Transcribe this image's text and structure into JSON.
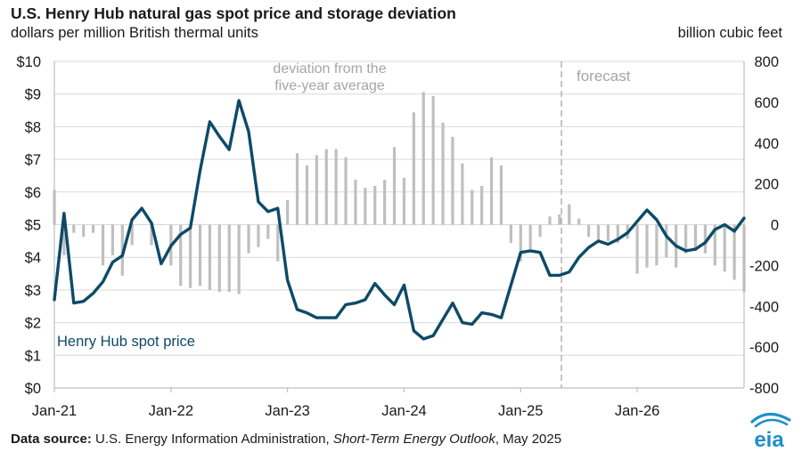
{
  "title": "U.S. Henry Hub natural gas spot price and storage deviation",
  "subtitle_left": "dollars per million British thermal units",
  "subtitle_right": "billion cubic feet",
  "source": {
    "label": "Data source:",
    "text": " U.S. Energy Information Administration, ",
    "publication": "Short-Term Energy Outlook",
    "date": ", May 2025"
  },
  "logo_text": "eia",
  "colors": {
    "price_line": "#0d4a67",
    "bars": "#bfbfbf",
    "axis": "#bfbfbf",
    "grid": "#d9d9d9",
    "text": "#1a1a1a",
    "annotation": "#a6a6a6",
    "forecast_line": "#a6a6a6",
    "logo_blue": "#1f8fc9"
  },
  "chart_data": {
    "type": "bar+line",
    "x_tick_labels": [
      "Jan-21",
      "Jan-22",
      "Jan-23",
      "Jan-24",
      "Jan-25",
      "Jan-26"
    ],
    "x_start": "2021-01",
    "x_end": "2026-12",
    "forecast_start": "2025-05",
    "left_axis": {
      "label": "dollars per million British thermal units",
      "min": 0,
      "max": 10,
      "ticks": [
        "$0",
        "$1",
        "$2",
        "$3",
        "$4",
        "$5",
        "$6",
        "$7",
        "$8",
        "$9",
        "$10"
      ]
    },
    "right_axis": {
      "label": "billion cubic feet",
      "min": -800,
      "max": 800,
      "ticks": [
        "-800",
        "-600",
        "-400",
        "-200",
        "0",
        "200",
        "400",
        "600",
        "800"
      ]
    },
    "annotations": {
      "deviation": [
        "deviation from the",
        "five-year average"
      ],
      "forecast": "forecast",
      "price": "Henry Hub spot price"
    },
    "series": [
      {
        "name": "Henry Hub spot price",
        "axis": "left",
        "kind": "line",
        "values": [
          2.7,
          5.35,
          2.6,
          2.65,
          2.9,
          3.25,
          3.85,
          4.05,
          5.15,
          5.5,
          5.05,
          3.8,
          4.35,
          4.7,
          4.9,
          6.65,
          8.15,
          7.7,
          7.3,
          8.8,
          7.85,
          5.7,
          5.4,
          5.5,
          3.3,
          2.4,
          2.3,
          2.15,
          2.15,
          2.15,
          2.55,
          2.6,
          2.7,
          3.2,
          2.85,
          2.55,
          3.15,
          1.75,
          1.5,
          1.6,
          2.1,
          2.6,
          2.0,
          1.95,
          2.3,
          2.25,
          2.15,
          3.15,
          4.15,
          4.2,
          4.15,
          3.45,
          3.45,
          3.55,
          4.0,
          4.3,
          4.5,
          4.4,
          4.55,
          4.75,
          5.1,
          5.45,
          5.15,
          4.65,
          4.35,
          4.2,
          4.25,
          4.45,
          4.85,
          5.0,
          4.8,
          5.2
        ]
      },
      {
        "name": "deviation from the five-year average",
        "axis": "right",
        "kind": "bar",
        "values": [
          170,
          -150,
          -40,
          -60,
          -40,
          -200,
          -150,
          -250,
          -100,
          0,
          -100,
          0,
          -200,
          -300,
          -310,
          -300,
          -320,
          -330,
          -330,
          -340,
          -140,
          -110,
          -70,
          -180,
          120,
          350,
          290,
          340,
          370,
          370,
          330,
          220,
          180,
          190,
          220,
          380,
          230,
          550,
          650,
          630,
          500,
          430,
          300,
          170,
          190,
          330,
          290,
          -90,
          -180,
          -120,
          -60,
          40,
          50,
          100,
          30,
          -60,
          -90,
          -80,
          -90,
          -70,
          -240,
          -210,
          -200,
          -160,
          -210,
          -140,
          -130,
          -140,
          -200,
          -230,
          -270,
          -330
        ]
      }
    ]
  }
}
